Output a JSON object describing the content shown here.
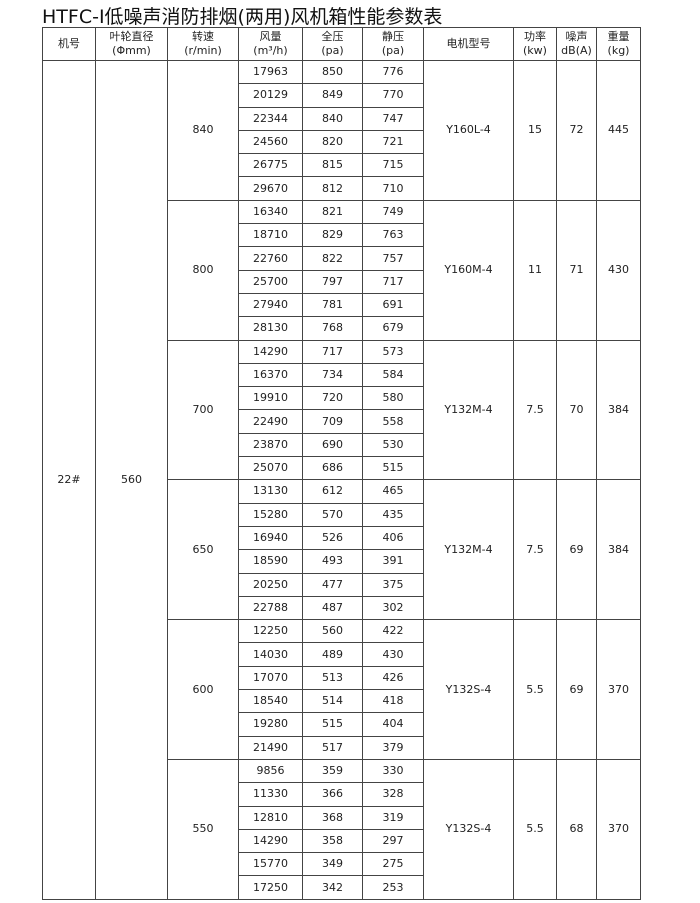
{
  "title": "HTFC-Ⅰ低噪声消防排烟(两用)风机箱性能参数表",
  "headers": [
    [
      "机号",
      ""
    ],
    [
      "叶轮直径",
      "(Φmm)"
    ],
    [
      "转速",
      "(r/min)"
    ],
    [
      "风量",
      "(m³/h)"
    ],
    [
      "全压",
      "(pa)"
    ],
    [
      "静压",
      "(pa)"
    ],
    [
      "电机型号",
      ""
    ],
    [
      "功率",
      "(kw)"
    ],
    [
      "噪声",
      "dB(A)"
    ],
    [
      "重量",
      "(kg)"
    ]
  ],
  "machine_no": "22#",
  "impeller_diameter": "560",
  "groups": [
    {
      "speed": "840",
      "motor": "Y160L-4",
      "power": "15",
      "noise": "72",
      "weight": "445",
      "rows": [
        [
          "17963",
          "850",
          "776"
        ],
        [
          "20129",
          "849",
          "770"
        ],
        [
          "22344",
          "840",
          "747"
        ],
        [
          "24560",
          "820",
          "721"
        ],
        [
          "26775",
          "815",
          "715"
        ],
        [
          "29670",
          "812",
          "710"
        ]
      ]
    },
    {
      "speed": "800",
      "motor": "Y160M-4",
      "power": "11",
      "noise": "71",
      "weight": "430",
      "rows": [
        [
          "16340",
          "821",
          "749"
        ],
        [
          "18710",
          "829",
          "763"
        ],
        [
          "22760",
          "822",
          "757"
        ],
        [
          "25700",
          "797",
          "717"
        ],
        [
          "27940",
          "781",
          "691"
        ],
        [
          "28130",
          "768",
          "679"
        ]
      ]
    },
    {
      "speed": "700",
      "motor": "Y132M-4",
      "power": "7.5",
      "noise": "70",
      "weight": "384",
      "rows": [
        [
          "14290",
          "717",
          "573"
        ],
        [
          "16370",
          "734",
          "584"
        ],
        [
          "19910",
          "720",
          "580"
        ],
        [
          "22490",
          "709",
          "558"
        ],
        [
          "23870",
          "690",
          "530"
        ],
        [
          "25070",
          "686",
          "515"
        ]
      ]
    },
    {
      "speed": "650",
      "motor": "Y132M-4",
      "power": "7.5",
      "noise": "69",
      "weight": "384",
      "rows": [
        [
          "13130",
          "612",
          "465"
        ],
        [
          "15280",
          "570",
          "435"
        ],
        [
          "16940",
          "526",
          "406"
        ],
        [
          "18590",
          "493",
          "391"
        ],
        [
          "20250",
          "477",
          "375"
        ],
        [
          "22788",
          "487",
          "302"
        ]
      ]
    },
    {
      "speed": "600",
      "motor": "Y132S-4",
      "power": "5.5",
      "noise": "69",
      "weight": "370",
      "rows": [
        [
          "12250",
          "560",
          "422"
        ],
        [
          "14030",
          "489",
          "430"
        ],
        [
          "17070",
          "513",
          "426"
        ],
        [
          "18540",
          "514",
          "418"
        ],
        [
          "19280",
          "515",
          "404"
        ],
        [
          "21490",
          "517",
          "379"
        ]
      ]
    },
    {
      "speed": "550",
      "motor": "Y132S-4",
      "power": "5.5",
      "noise": "68",
      "weight": "370",
      "rows": [
        [
          "9856",
          "359",
          "330"
        ],
        [
          "11330",
          "366",
          "328"
        ],
        [
          "12810",
          "368",
          "319"
        ],
        [
          "14290",
          "358",
          "297"
        ],
        [
          "15770",
          "349",
          "275"
        ],
        [
          "17250",
          "342",
          "253"
        ]
      ]
    }
  ]
}
